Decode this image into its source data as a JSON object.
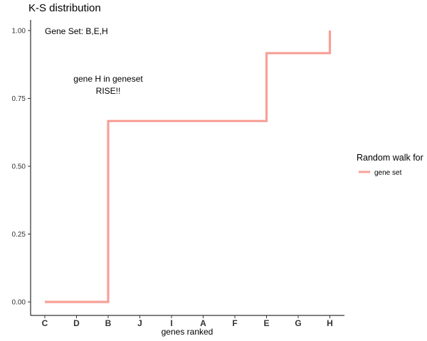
{
  "chart_data": {
    "type": "line",
    "title": "K-S distribution",
    "xlabel": "genes ranked",
    "ylabel": "",
    "categories": [
      "C",
      "D",
      "B",
      "J",
      "I",
      "A",
      "F",
      "E",
      "G",
      "H"
    ],
    "yticks": [
      "0.00",
      "0.25",
      "0.50",
      "0.75",
      "1.00"
    ],
    "ylim": [
      0,
      1
    ],
    "grid": false,
    "legend": {
      "title": "Random walk for",
      "placement": "right",
      "entries": [
        "gene set"
      ]
    },
    "series": [
      {
        "name": "gene set",
        "color": "#F8A097",
        "step": true,
        "points": [
          {
            "x": "C",
            "y": 0.0
          },
          {
            "x": "B",
            "y": 0.0
          },
          {
            "x": "B",
            "y": 0.6667
          },
          {
            "x": "E",
            "y": 0.6667
          },
          {
            "x": "E",
            "y": 0.9167
          },
          {
            "x": "H",
            "y": 0.9167
          },
          {
            "x": "H",
            "y": 1.0
          }
        ]
      }
    ],
    "annotations": [
      {
        "text": "Gene Set: B,E,H"
      },
      {
        "lines": [
          "gene H  in geneset",
          "RISE!!"
        ]
      }
    ]
  }
}
